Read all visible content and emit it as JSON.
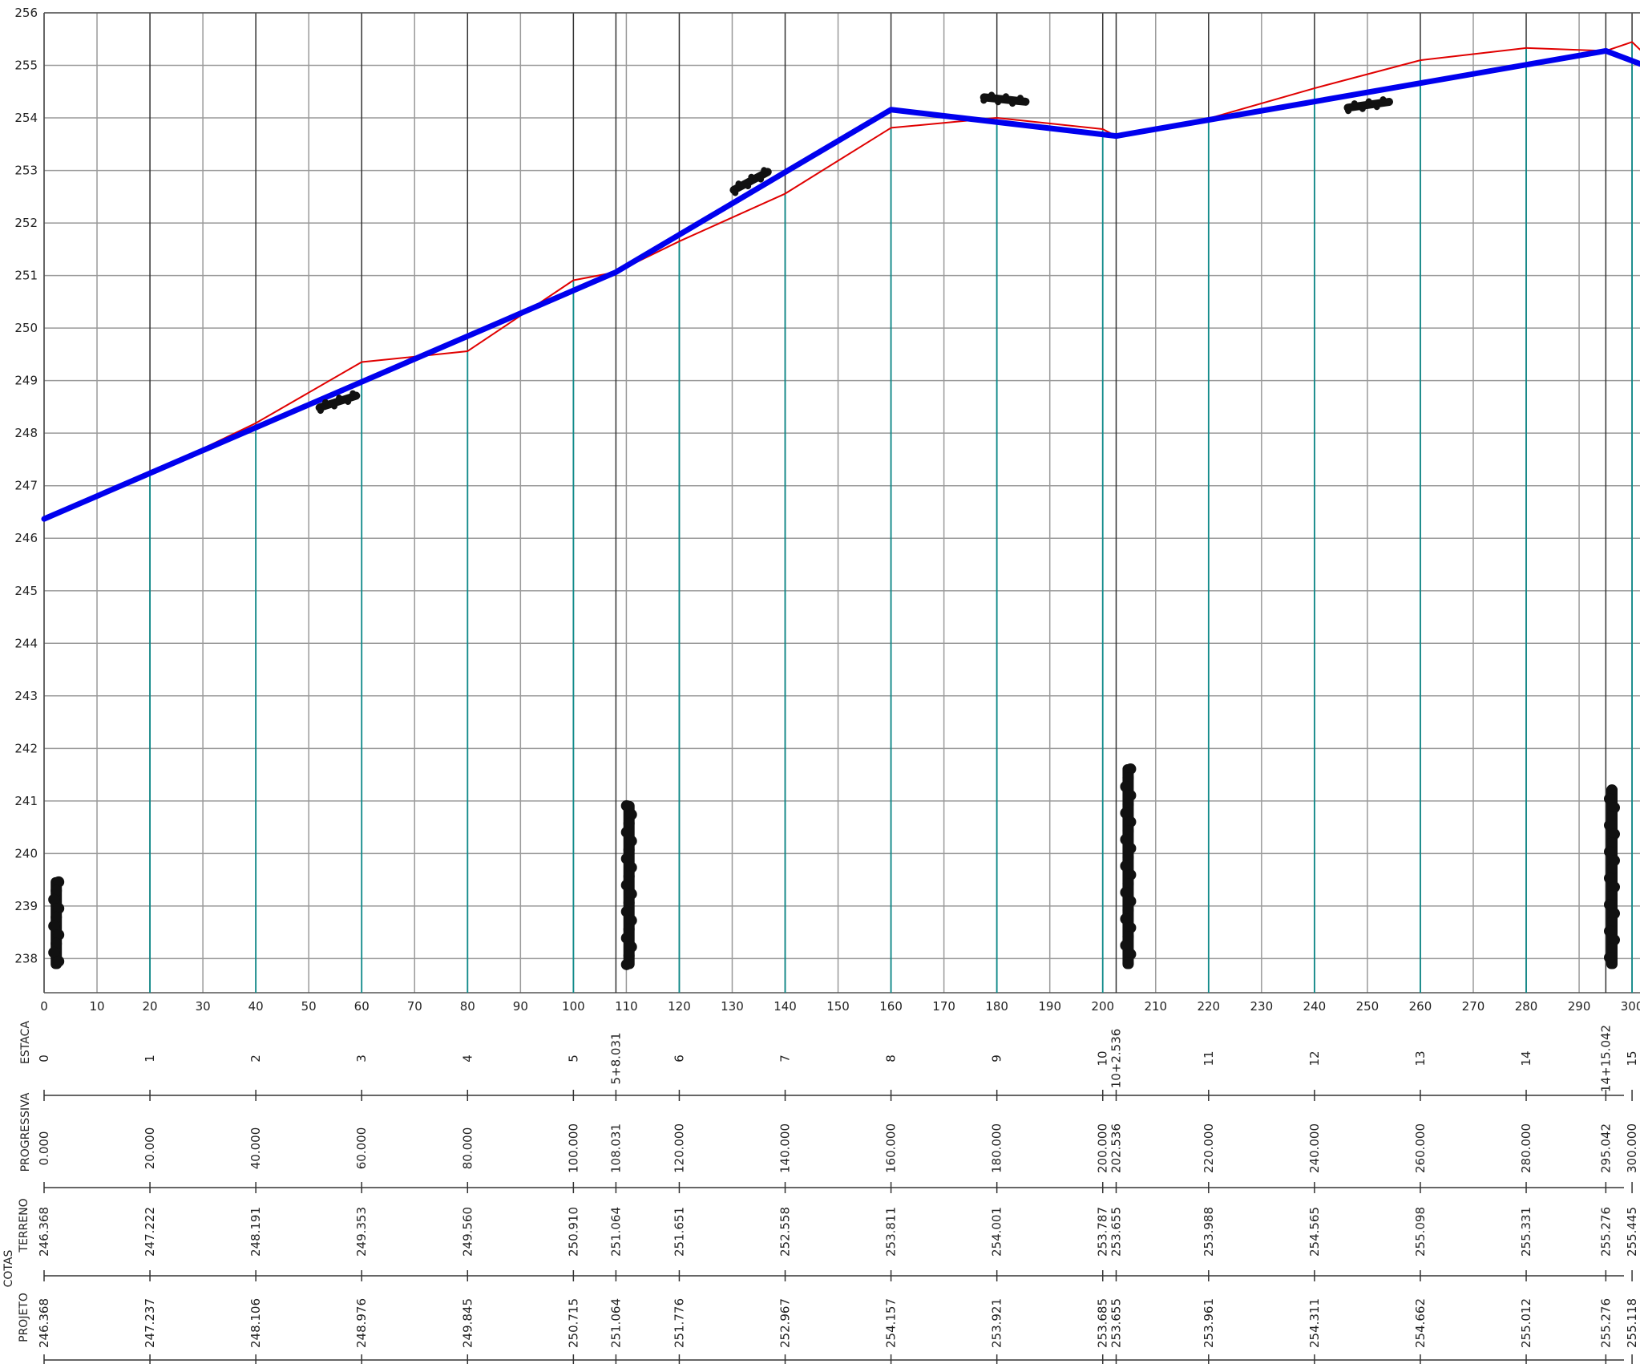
{
  "chart_data": {
    "type": "line",
    "y_ticks": [
      238,
      239,
      240,
      241,
      242,
      243,
      244,
      245,
      246,
      247,
      248,
      249,
      250,
      251,
      252,
      253,
      254,
      255,
      256
    ],
    "x_ticks": [
      0,
      10,
      20,
      30,
      40,
      50,
      60,
      70,
      80,
      90,
      100,
      110,
      120,
      130,
      140,
      150,
      160,
      170,
      180,
      190,
      200,
      210,
      220,
      230,
      240,
      250,
      260,
      270,
      280,
      290,
      300
    ],
    "xlim": [
      0,
      301.5
    ],
    "ylim": [
      237.35,
      256
    ],
    "grid": true,
    "series": [
      {
        "color": "#e00000",
        "x": [
          0,
          20,
          40,
          60,
          80,
          100,
          108.031,
          120,
          140,
          160,
          180,
          200,
          202.536,
          220,
          240,
          260,
          280,
          295.042,
          300,
          301.5
        ],
        "y": [
          246.368,
          247.222,
          248.191,
          249.353,
          249.56,
          250.91,
          251.064,
          251.651,
          252.558,
          253.811,
          254.001,
          253.787,
          253.655,
          253.988,
          254.565,
          255.098,
          255.331,
          255.276,
          255.445,
          255.3
        ]
      },
      {
        "color": "#0000ee",
        "x": [
          0,
          108.031,
          160,
          202.536,
          295.042,
          301.5
        ],
        "y": [
          246.368,
          251.064,
          254.157,
          253.655,
          255.276,
          255.03
        ]
      }
    ],
    "stations": [
      {
        "x": 0,
        "estaca": "0",
        "progressiva": "0.000",
        "terreno": "246.368",
        "projeto": "246.368"
      },
      {
        "x": 20,
        "estaca": "1",
        "progressiva": "20.000",
        "terreno": "247.222",
        "projeto": "247.237"
      },
      {
        "x": 40,
        "estaca": "2",
        "progressiva": "40.000",
        "terreno": "248.191",
        "projeto": "248.106"
      },
      {
        "x": 60,
        "estaca": "3",
        "progressiva": "60.000",
        "terreno": "249.353",
        "projeto": "248.976"
      },
      {
        "x": 80,
        "estaca": "4",
        "progressiva": "80.000",
        "terreno": "249.560",
        "projeto": "249.845"
      },
      {
        "x": 100,
        "estaca": "5",
        "progressiva": "100.000",
        "terreno": "250.910",
        "projeto": "250.715"
      },
      {
        "x": 108.031,
        "estaca": "5+8.031",
        "progressiva": "108.031",
        "terreno": "251.064",
        "projeto": "251.064"
      },
      {
        "x": 120,
        "estaca": "6",
        "progressiva": "120.000",
        "terreno": "251.651",
        "projeto": "251.776"
      },
      {
        "x": 140,
        "estaca": "7",
        "progressiva": "140.000",
        "terreno": "252.558",
        "projeto": "252.967"
      },
      {
        "x": 160,
        "estaca": "8",
        "progressiva": "160.000",
        "terreno": "253.811",
        "projeto": "254.157"
      },
      {
        "x": 180,
        "estaca": "9",
        "progressiva": "180.000",
        "terreno": "254.001",
        "projeto": "253.921"
      },
      {
        "x": 200,
        "estaca": "10",
        "progressiva": "200.000",
        "terreno": "253.787",
        "projeto": "253.685"
      },
      {
        "x": 202.536,
        "estaca": "10+2.536",
        "progressiva": "202.536",
        "terreno": "253.655",
        "projeto": "253.655"
      },
      {
        "x": 220,
        "estaca": "11",
        "progressiva": "220.000",
        "terreno": "253.988",
        "projeto": "253.961"
      },
      {
        "x": 240,
        "estaca": "12",
        "progressiva": "240.000",
        "terreno": "254.565",
        "projeto": "254.311"
      },
      {
        "x": 260,
        "estaca": "13",
        "progressiva": "260.000",
        "terreno": "255.098",
        "projeto": "254.662"
      },
      {
        "x": 280,
        "estaca": "14",
        "progressiva": "280.000",
        "terreno": "255.331",
        "projeto": "255.012"
      },
      {
        "x": 295.042,
        "estaca": "14+15.042",
        "progressiva": "295.042",
        "terreno": "255.276",
        "projeto": "255.276"
      },
      {
        "x": 300,
        "estaca": "15",
        "progressiva": "300.000",
        "terreno": "255.445",
        "projeto": "255.118"
      }
    ],
    "row_labels": {
      "estaca": "ESTACA",
      "progressiva": "PROGRESSIVA",
      "cotas": "COTAS",
      "terreno": "TERRENO",
      "projeto": "PROJETO"
    }
  }
}
